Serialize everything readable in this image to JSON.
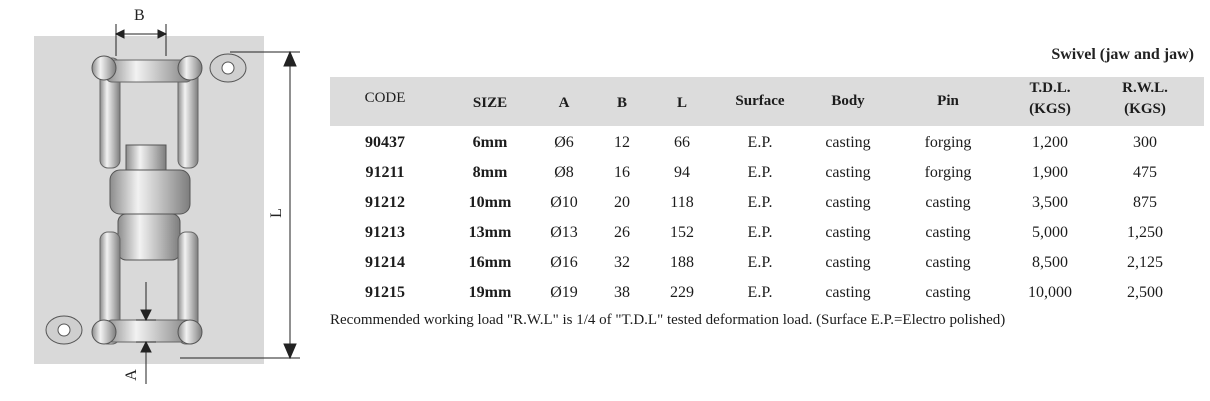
{
  "diagram": {
    "label_b": "B",
    "label_l": "L",
    "label_a": "A"
  },
  "title": "Swivel (jaw and jaw)",
  "table": {
    "columns": [
      {
        "key": "code",
        "label": "CODE"
      },
      {
        "key": "size",
        "label": "SIZE"
      },
      {
        "key": "a",
        "label": "A"
      },
      {
        "key": "b",
        "label": "B"
      },
      {
        "key": "l",
        "label": "L"
      },
      {
        "key": "surface",
        "label": "Surface"
      },
      {
        "key": "body",
        "label": "Body"
      },
      {
        "key": "pin",
        "label": "Pin"
      },
      {
        "key": "tdl",
        "label": "T.D.L.",
        "sub": "(KGS)"
      },
      {
        "key": "rwl",
        "label": "R.W.L.",
        "sub": "(KGS)"
      }
    ],
    "rows": [
      {
        "code": "90437",
        "size": "6mm",
        "a": "Ø6",
        "b": "12",
        "l": "66",
        "surface": "E.P.",
        "body": "casting",
        "pin": "forging",
        "tdl": "1,200",
        "rwl": "300"
      },
      {
        "code": "91211",
        "size": "8mm",
        "a": "Ø8",
        "b": "16",
        "l": "94",
        "surface": "E.P.",
        "body": "casting",
        "pin": "forging",
        "tdl": "1,900",
        "rwl": "475"
      },
      {
        "code": "91212",
        "size": "10mm",
        "a": "Ø10",
        "b": "20",
        "l": "118",
        "surface": "E.P.",
        "body": "casting",
        "pin": "casting",
        "tdl": "3,500",
        "rwl": "875"
      },
      {
        "code": "91213",
        "size": "13mm",
        "a": "Ø13",
        "b": "26",
        "l": "152",
        "surface": "E.P.",
        "body": "casting",
        "pin": "casting",
        "tdl": "5,000",
        "rwl": "1,250"
      },
      {
        "code": "91214",
        "size": "16mm",
        "a": "Ø16",
        "b": "32",
        "l": "188",
        "surface": "E.P.",
        "body": "casting",
        "pin": "casting",
        "tdl": "8,500",
        "rwl": "2,125"
      },
      {
        "code": "91215",
        "size": "19mm",
        "a": "Ø19",
        "b": "38",
        "l": "229",
        "surface": "E.P.",
        "body": "casting",
        "pin": "casting",
        "tdl": "10,000",
        "rwl": "2,500"
      }
    ]
  },
  "note": "Recommended working load \"R.W.L\" is 1/4 of \"T.D.L\" tested deformation load. (Surface E.P.=Electro polished)"
}
